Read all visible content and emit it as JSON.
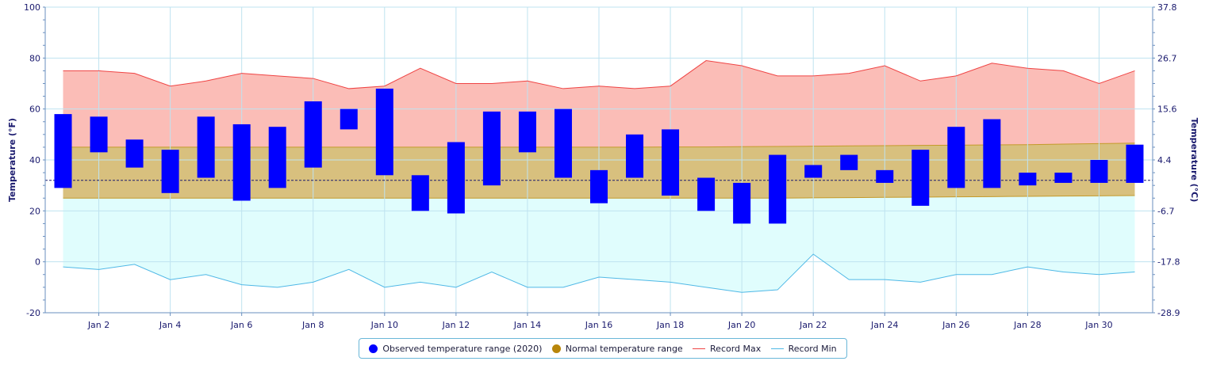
{
  "chart_data": {
    "type": "bar",
    "categories": [
      "Jan 1",
      "Jan 2",
      "Jan 3",
      "Jan 4",
      "Jan 5",
      "Jan 6",
      "Jan 7",
      "Jan 8",
      "Jan 9",
      "Jan 10",
      "Jan 11",
      "Jan 12",
      "Jan 13",
      "Jan 14",
      "Jan 15",
      "Jan 16",
      "Jan 17",
      "Jan 18",
      "Jan 19",
      "Jan 20",
      "Jan 21",
      "Jan 22",
      "Jan 23",
      "Jan 24",
      "Jan 25",
      "Jan 26",
      "Jan 27",
      "Jan 28",
      "Jan 29",
      "Jan 30",
      "Jan 31"
    ],
    "x_tick_labels": [
      "Jan 2",
      "Jan 4",
      "Jan 6",
      "Jan 8",
      "Jan 10",
      "Jan 12",
      "Jan 14",
      "Jan 16",
      "Jan 18",
      "Jan 20",
      "Jan 22",
      "Jan 24",
      "Jan 26",
      "Jan 28",
      "Jan 30"
    ],
    "ylabel": "Temperature (°F)",
    "y2label": "Temperature (°C)",
    "ylim": [
      -20,
      100
    ],
    "y_ticks": [
      -20,
      0,
      20,
      40,
      60,
      80,
      100
    ],
    "y2_ticks": [
      "-28.9",
      "-17.8",
      "-6.7",
      "4.4",
      "15.6",
      "26.7",
      "37.8"
    ],
    "freezing_line": 32,
    "grid": true,
    "legend_position": "bottom-center",
    "series": [
      {
        "name": "Observed temperature range (2020)",
        "kind": "range-bar",
        "color": "#0000ff",
        "low": [
          29,
          43,
          37,
          27,
          33,
          24,
          29,
          37,
          52,
          34,
          20,
          19,
          30,
          43,
          33,
          23,
          33,
          26,
          20,
          15,
          15,
          33,
          36,
          31,
          22,
          29,
          29,
          30,
          31,
          31,
          31
        ],
        "high": [
          58,
          57,
          48,
          44,
          57,
          54,
          53,
          63,
          60,
          68,
          34,
          47,
          59,
          59,
          60,
          36,
          50,
          52,
          33,
          31,
          42,
          38,
          42,
          36,
          44,
          53,
          56,
          35,
          35,
          40,
          46
        ]
      },
      {
        "name": "Normal temperature range",
        "kind": "area-range",
        "color": "#b8860b",
        "low": [
          25.0,
          25.0,
          25.0,
          25.0,
          25.0,
          25.0,
          25.0,
          25.0,
          25.0,
          25.0,
          25.0,
          25.0,
          25.0,
          25.0,
          25.0,
          25.0,
          25.0,
          25.0,
          25.0,
          25.0,
          25.0,
          25.1,
          25.2,
          25.3,
          25.4,
          25.5,
          25.6,
          25.7,
          25.8,
          25.9,
          26.0
        ],
        "high": [
          45.0,
          45.0,
          45.0,
          45.0,
          45.0,
          45.0,
          45.0,
          45.0,
          45.0,
          45.0,
          45.0,
          45.0,
          45.0,
          45.0,
          45.0,
          45.0,
          45.0,
          45.1,
          45.1,
          45.2,
          45.3,
          45.4,
          45.5,
          45.6,
          45.7,
          45.8,
          45.9,
          46.0,
          46.2,
          46.4,
          46.6
        ]
      },
      {
        "name": "Record Max",
        "kind": "line",
        "color": "#ef4444",
        "values": [
          75,
          75,
          74,
          69,
          71,
          74,
          73,
          72,
          68,
          69,
          76,
          70,
          70,
          71,
          68,
          69,
          68,
          69,
          79,
          77,
          73,
          73,
          74,
          77,
          71,
          73,
          78,
          76,
          75,
          70,
          75
        ]
      },
      {
        "name": "Record Min",
        "kind": "line",
        "color": "#4fb8e6",
        "values": [
          -2,
          -3,
          -1,
          -7,
          -5,
          -9,
          -10,
          -8,
          -3,
          -10,
          -8,
          -10,
          -4,
          -10,
          -10,
          -6,
          -7,
          -8,
          -10,
          -12,
          -11,
          3,
          -7,
          -7,
          -8,
          -5,
          -5,
          -2,
          -4,
          -5,
          -4
        ]
      }
    ]
  },
  "legend": {
    "observed": "Observed temperature range (2020)",
    "normal": "Normal temperature range",
    "record_max": "Record Max",
    "record_min": "Record Min"
  },
  "colors": {
    "observed": "#0000ff",
    "normal": "#b8860b",
    "record_max": "#ef4444",
    "record_min": "#4fb8e6"
  }
}
